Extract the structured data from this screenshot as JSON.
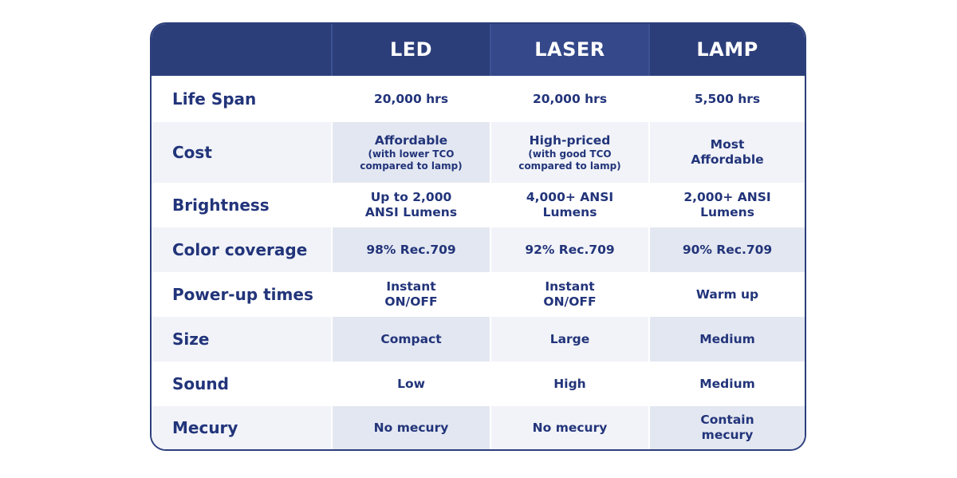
{
  "columns": [
    "LED",
    "LASER",
    "LAMP"
  ],
  "rows": [
    {
      "label": "Life Span",
      "values": [
        {
          "main": "20,000 hrs",
          "sub": ""
        },
        {
          "main": "20,000 hrs",
          "sub": ""
        },
        {
          "main": "5,500 hrs",
          "sub": ""
        }
      ]
    },
    {
      "label": "Cost",
      "values": [
        {
          "main": "Affordable",
          "sub": "(with lower TCO compared to lamp)"
        },
        {
          "main": "High-priced",
          "sub": "(with good TCO compared to lamp)"
        },
        {
          "main": "Most Affordable",
          "sub": ""
        }
      ]
    },
    {
      "label": "Brightness",
      "values": [
        {
          "main": "Up to 2,000 ANSI Lumens",
          "sub": ""
        },
        {
          "main": "4,000+ ANSI Lumens",
          "sub": ""
        },
        {
          "main": "2,000+ ANSI Lumens",
          "sub": ""
        }
      ]
    },
    {
      "label": "Color coverage",
      "values": [
        {
          "main": "98% Rec.709",
          "sub": ""
        },
        {
          "main": "92% Rec.709",
          "sub": ""
        },
        {
          "main": "90% Rec.709",
          "sub": ""
        }
      ]
    },
    {
      "label": "Power-up times",
      "values": [
        {
          "main": "Instant ON/OFF",
          "sub": ""
        },
        {
          "main": "Instant ON/OFF",
          "sub": ""
        },
        {
          "main": "Warm up",
          "sub": ""
        }
      ]
    },
    {
      "label": "Size",
      "values": [
        {
          "main": "Compact",
          "sub": ""
        },
        {
          "main": "Large",
          "sub": ""
        },
        {
          "main": "Medium",
          "sub": ""
        }
      ]
    },
    {
      "label": "Sound",
      "values": [
        {
          "main": "Low",
          "sub": ""
        },
        {
          "main": "High",
          "sub": ""
        },
        {
          "main": "Medium",
          "sub": ""
        }
      ]
    },
    {
      "label": "Mecury",
      "values": [
        {
          "main": "No mecury",
          "sub": ""
        },
        {
          "main": "No mecury",
          "sub": ""
        },
        {
          "main": "Contain mecury",
          "sub": ""
        }
      ]
    }
  ],
  "colors": {
    "header_bg": "#2c3e7a",
    "text": "#22347a",
    "row_stripe": "#f1f3f8"
  }
}
